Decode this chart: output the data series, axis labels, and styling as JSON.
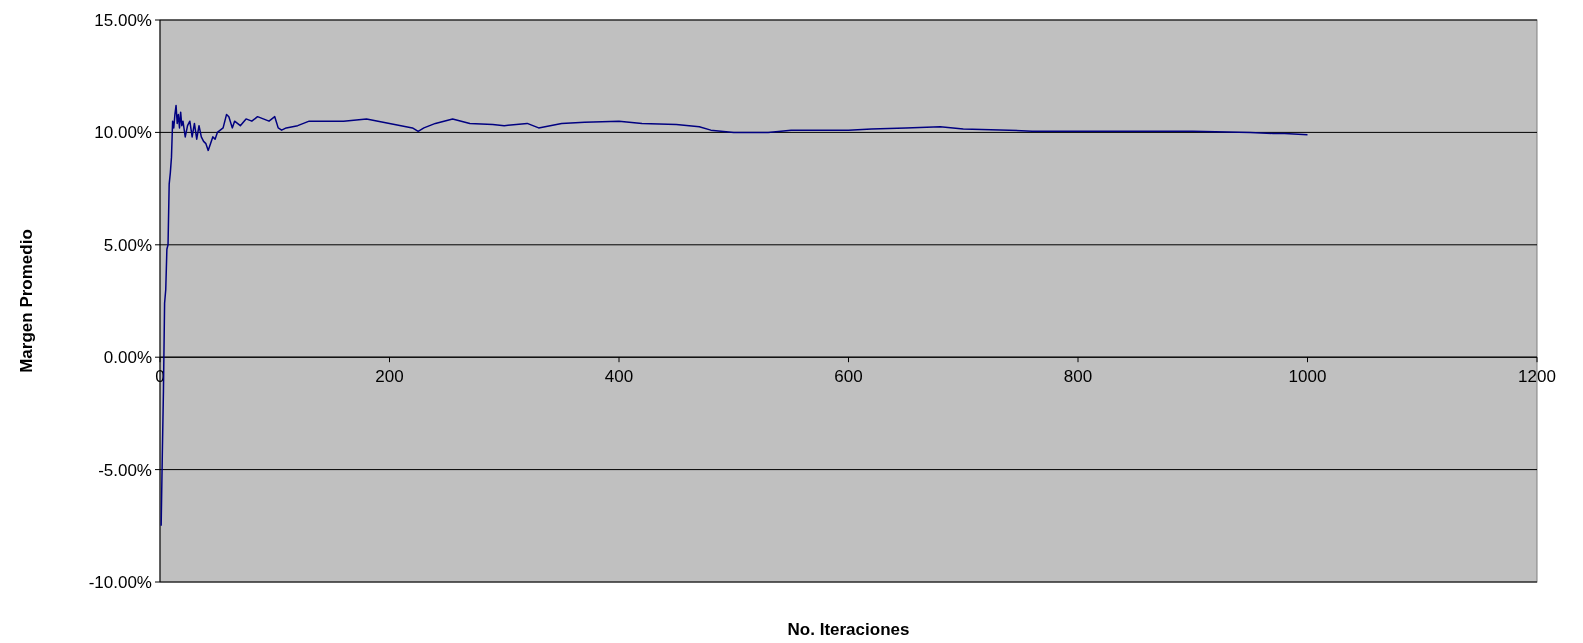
{
  "chart_data": {
    "type": "line",
    "xlabel": "No. Iteraciones",
    "ylabel": "Margen Promedio",
    "xlim": [
      0,
      1200
    ],
    "xticks": [
      0,
      200,
      400,
      600,
      800,
      1000,
      1200
    ],
    "ylim": [
      -10,
      15
    ],
    "yticks": [
      {
        "value": -10,
        "label": "-10.00%"
      },
      {
        "value": -5,
        "label": "-5.00%"
      },
      {
        "value": 0,
        "label": "0.00%"
      },
      {
        "value": 5,
        "label": "5.00%"
      },
      {
        "value": 10,
        "label": "10.00%"
      },
      {
        "value": 15,
        "label": "15.00%"
      }
    ],
    "grid": "y",
    "marker": "none",
    "line_style": "solid",
    "series": [
      {
        "color": "#000080",
        "x": [
          1,
          2,
          3,
          4,
          5,
          6,
          7,
          8,
          9,
          10,
          11,
          12,
          13,
          14,
          15,
          16,
          17,
          18,
          19,
          20,
          22,
          24,
          26,
          28,
          30,
          32,
          34,
          36,
          38,
          40,
          42,
          44,
          46,
          48,
          50,
          55,
          58,
          60,
          63,
          65,
          70,
          75,
          80,
          85,
          90,
          95,
          100,
          103,
          106,
          110,
          120,
          130,
          140,
          160,
          180,
          190,
          200,
          210,
          220,
          225,
          230,
          240,
          255,
          270,
          290,
          300,
          320,
          330,
          350,
          370,
          400,
          420,
          450,
          470,
          480,
          500,
          530,
          550,
          580,
          600,
          620,
          650,
          680,
          700,
          740,
          760,
          800,
          850,
          900,
          950,
          970,
          980,
          1000
        ],
        "values": [
          -7.5,
          -4.4,
          -1.5,
          2.4,
          3.0,
          4.8,
          5.0,
          7.7,
          8.2,
          8.9,
          10.5,
          10.2,
          10.8,
          11.2,
          10.4,
          10.8,
          10.2,
          10.9,
          10.3,
          10.5,
          9.8,
          10.3,
          10.5,
          9.8,
          10.4,
          9.7,
          10.3,
          9.8,
          9.6,
          9.5,
          9.2,
          9.5,
          9.8,
          9.7,
          10.0,
          10.2,
          10.8,
          10.7,
          10.2,
          10.5,
          10.3,
          10.6,
          10.5,
          10.7,
          10.6,
          10.5,
          10.7,
          10.2,
          10.1,
          10.2,
          10.3,
          10.5,
          10.5,
          10.5,
          10.6,
          10.5,
          10.4,
          10.3,
          10.2,
          10.05,
          10.2,
          10.4,
          10.6,
          10.4,
          10.35,
          10.3,
          10.4,
          10.2,
          10.4,
          10.45,
          10.5,
          10.4,
          10.35,
          10.25,
          10.1,
          10.0,
          10.0,
          10.1,
          10.1,
          10.1,
          10.15,
          10.2,
          10.25,
          10.15,
          10.1,
          10.05,
          10.05,
          10.05,
          10.05,
          10.0,
          9.95,
          9.95,
          9.9
        ]
      }
    ]
  }
}
